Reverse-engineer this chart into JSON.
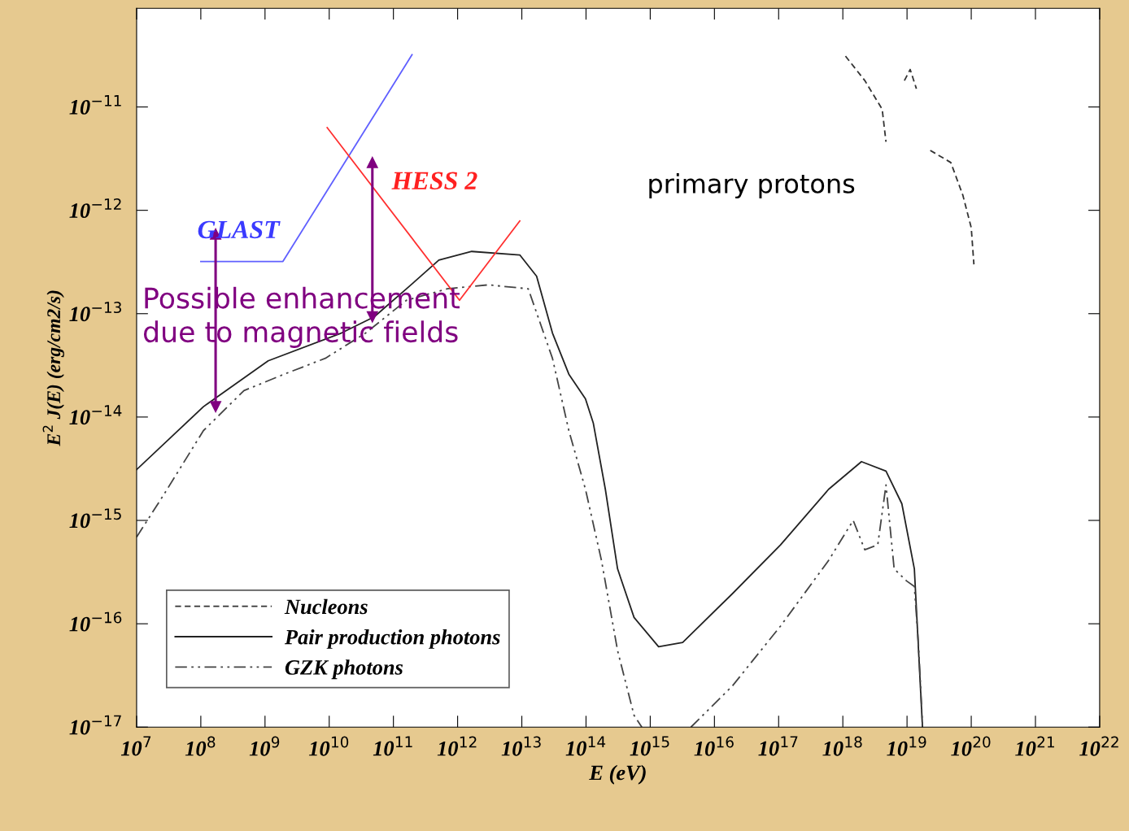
{
  "chart_data": {
    "type": "line",
    "xlabel": "E (eV)",
    "ylabel": "E$^{2}$ J(E) (erg/cm2/s)",
    "log": "xy",
    "grid": false,
    "legend": "bottom left",
    "xlim": [
      10000000.0,
      1e+22
    ],
    "ylim": [
      1e-17,
      9e-11
    ],
    "xticks": [
      {
        "value": 10000000.0,
        "label": "10$^{7}$"
      },
      {
        "value": 100000000.0,
        "label": "10$^{8}$"
      },
      {
        "value": 1000000000.0,
        "label": "10$^{9}$"
      },
      {
        "value": 10000000000.0,
        "label": "10$^{10}$"
      },
      {
        "value": 100000000000.0,
        "label": "10$^{11}$"
      },
      {
        "value": 1000000000000.0,
        "label": "10$^{12}$"
      },
      {
        "value": 10000000000000.0,
        "label": "10$^{13}$"
      },
      {
        "value": 100000000000000.0,
        "label": "10$^{14}$"
      },
      {
        "value": 1000000000000000.0,
        "label": "10$^{15}$"
      },
      {
        "value": 1e+16,
        "label": "10$^{16}$"
      },
      {
        "value": 1e+17,
        "label": "10$^{17}$"
      },
      {
        "value": 1e+18,
        "label": "10$^{18}$"
      },
      {
        "value": 1e+19,
        "label": "10$^{19}$"
      },
      {
        "value": 1e+20,
        "label": "10$^{20}$"
      },
      {
        "value": 1e+21,
        "label": "10$^{21}$"
      },
      {
        "value": 1e+22,
        "label": "10$^{22}$"
      }
    ],
    "yticks": [
      {
        "value": 1e-17,
        "label": "10$^{−17}$"
      },
      {
        "value": 1e-16,
        "label": "10$^{−16}$"
      },
      {
        "value": 1e-15,
        "label": "10$^{−15}$"
      },
      {
        "value": 1e-14,
        "label": "10$^{−14}$"
      },
      {
        "value": 1e-13,
        "label": "10$^{−13}$"
      },
      {
        "value": 1e-12,
        "label": "10$^{−12}$"
      },
      {
        "value": 1e-11,
        "label": "10$^{−11}$"
      }
    ],
    "series": [
      {
        "name": "Nucleons",
        "color": "#333333",
        "line_style": "dashed",
        "x": [
          1.1e+18,
          2.2e+18,
          4.1e+18,
          4.7e+18,
          6e+18,
          9.1e+18,
          1.12e+19,
          1.4e+19,
          1.8e+19,
          2.3e+19,
          4.8e+19,
          7.4e+19,
          1e+20,
          1.1e+20
        ],
        "values": [
          3.1e-11,
          1.8e-11,
          9.5e-12,
          4.6e-12,
          null,
          1.8e-11,
          2.3e-11,
          1.5e-11,
          null,
          3.8e-12,
          2.9e-12,
          1.4e-12,
          6.8e-13,
          3e-13
        ]
      },
      {
        "name": "Pair production photons",
        "color": "#222222",
        "line_style": "solid",
        "x": [
          10000000.0,
          110000000.0,
          1120000000.0,
          15500000000.0,
          50000000000.0,
          160000000000.0,
          510000000000.0,
          1660000000000.0,
          9300000000000.0,
          17000000000000.0,
          30000000000000.0,
          54000000000000.0,
          98000000000000.0,
          130000000000000.0,
          200000000000000.0,
          310000000000000.0,
          560000000000000.0,
          1350000000000000.0,
          3200000000000000.0,
          1.9e+16,
          1.07e+17,
          6e+17,
          1.95e+18,
          4.7e+18,
          8.3e+18,
          1.3e+19,
          1.74e+19
        ],
        "values": [
          3.1e-15,
          1.26e-14,
          3.5e-14,
          6.5e-14,
          9.3e-14,
          1.74e-13,
          3.3e-13,
          4e-13,
          3.7e-13,
          2.3e-13,
          6.5e-14,
          2.6e-14,
          1.5e-14,
          8.7e-15,
          2e-15,
          3.4e-16,
          1.15e-16,
          6e-17,
          6.6e-17,
          1.95e-16,
          5.8e-16,
          2e-15,
          3.7e-15,
          3e-15,
          1.45e-15,
          3.4e-16,
          1e-17
        ]
      },
      {
        "name": "GZK photons",
        "color": "#444444",
        "line_style": "dashdotdot",
        "x": [
          10000000.0,
          26000000.0,
          110000000.0,
          470000000.0,
          2000000000.0,
          8700000000.0,
          37000000000.0,
          160000000000.0,
          690000000000.0,
          3000000000000.0,
          12600000000000.0,
          30000000000000.0,
          54000000000000.0,
          98000000000000.0,
          174000000000000.0,
          310000000000000.0,
          560000000000000.0,
          740000000000000.0,
          3000000000000000.0,
          4300000000000000.0,
          1.9e+16,
          1.07e+17,
          6e+17,
          1.45e+18,
          2.2e+18,
          3.5e+18,
          4.7e+18,
          6.3e+18,
          9.8e+18,
          1.3e+19,
          1.5e+19,
          1.74e+19
        ],
        "values": [
          6.9e-16,
          1.74e-15,
          7.4e-15,
          1.8e-14,
          2.6e-14,
          3.7e-14,
          6.5e-14,
          1.35e-13,
          1.74e-13,
          1.9e-13,
          1.74e-13,
          3.7e-14,
          7.4e-15,
          2e-15,
          4.1e-16,
          5.5e-17,
          1.3e-17,
          1e-17,
          null,
          1e-17,
          2.5e-17,
          9.5e-17,
          4.1e-16,
          1e-15,
          5.2e-16,
          5.8e-16,
          2.2e-15,
          3.4e-16,
          2.6e-16,
          2.3e-16,
          6.6e-17,
          1.07e-17
        ]
      },
      {
        "color": "#6060ff",
        "line_style": "solid",
        "x": [
          100000000.0,
          1900000000.0,
          195000000000.0
        ],
        "values": [
          3.2e-13,
          3.2e-13,
          3.2e-11
        ]
      },
      {
        "color": "#ff3030",
        "line_style": "solid",
        "x": [
          9300000000.0,
          1070000000000.0,
          9300000000000.0
        ],
        "values": [
          6.3e-12,
          1.35e-13,
          7.9e-13
        ]
      },
      {
        "color": "#800080",
        "line_style": "solid",
        "marker": "triangle",
        "x": [
          170000000.0,
          170000000.0
        ],
        "values": [
          5.9e-13,
          1.26e-14
        ]
      },
      {
        "color": "#800080",
        "line_style": "solid",
        "marker": "triangle",
        "x": [
          47000000000.0,
          47000000000.0
        ],
        "values": [
          2.9e-12,
          9.3e-14
        ]
      }
    ],
    "annotations": [
      "GLAST",
      "HESS 2",
      "primary protons",
      "Possible enhancement\ndue to magnetic fields"
    ]
  }
}
